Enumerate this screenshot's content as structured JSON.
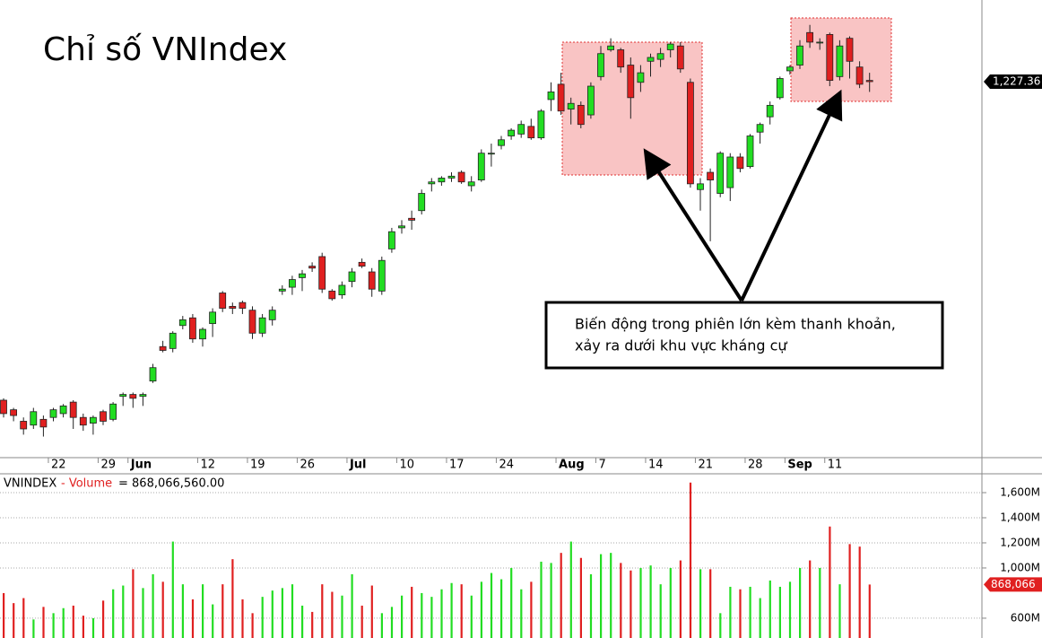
{
  "chart_data": [
    {
      "type": "candlestick",
      "title": "Chỉ số VNIndex",
      "up_color": "#22dd22",
      "down_color": "#e02020",
      "categories": [
        null,
        null,
        null,
        null,
        null,
        "22",
        null,
        null,
        null,
        null,
        "29",
        null,
        null,
        "Jun",
        null,
        null,
        null,
        null,
        null,
        null,
        "12",
        null,
        null,
        null,
        null,
        "19",
        null,
        null,
        null,
        null,
        "26",
        null,
        null,
        null,
        null,
        "Jul",
        null,
        null,
        null,
        null,
        "10",
        null,
        null,
        null,
        null,
        "17",
        null,
        null,
        null,
        null,
        "24",
        null,
        null,
        null,
        null,
        null,
        "Aug",
        null,
        null,
        null,
        "7",
        null,
        null,
        null,
        null,
        "14",
        null,
        null,
        null,
        null,
        "21",
        null,
        null,
        null,
        null,
        "28",
        null,
        null,
        null,
        "Sep",
        null,
        null,
        null,
        "11",
        null,
        null,
        null,
        null
      ],
      "open": [
        1061,
        1056,
        1050,
        1048,
        1051,
        1052,
        1054,
        1060,
        1052,
        1049,
        1055,
        1051,
        1063,
        1064,
        1063,
        1071,
        1089,
        1088,
        1100,
        1104,
        1093,
        1101,
        1117,
        1110,
        1112,
        1108,
        1096,
        1103,
        1118,
        1120,
        1125,
        1131,
        1136,
        1118,
        1116,
        1123,
        1133,
        1128,
        1118,
        1140,
        1151,
        1156,
        1160,
        1174,
        1175,
        1177,
        1180,
        1173,
        1176,
        1190,
        1194,
        1199,
        1200,
        1204,
        1198,
        1218,
        1226,
        1213,
        1215,
        1210,
        1230,
        1244,
        1244,
        1236,
        1227,
        1238,
        1239,
        1244,
        1246,
        1227,
        1171,
        1180,
        1169,
        1172,
        1188,
        1183,
        1201,
        1209,
        1219,
        1233,
        1236,
        1253,
        1248,
        1252,
        1230,
        1250,
        1235,
        1228
      ],
      "high": [
        1062,
        1057,
        1052,
        1057,
        1053,
        1057,
        1059,
        1061,
        1054,
        1053,
        1056,
        1060,
        1065,
        1065,
        1065,
        1080,
        1092,
        1097,
        1105,
        1106,
        1099,
        1109,
        1118,
        1112,
        1113,
        1110,
        1106,
        1110,
        1121,
        1126,
        1129,
        1133,
        1138,
        1119,
        1123,
        1130,
        1135,
        1130,
        1136,
        1151,
        1155,
        1160,
        1171,
        1177,
        1178,
        1180,
        1181,
        1178,
        1192,
        1195,
        1199,
        1203,
        1207,
        1208,
        1213,
        1227,
        1232,
        1219,
        1217,
        1227,
        1246,
        1250,
        1245,
        1240,
        1236,
        1242,
        1245,
        1248,
        1248,
        1229,
        1177,
        1182,
        1191,
        1190,
        1190,
        1200,
        1206,
        1217,
        1230,
        1236,
        1249,
        1257,
        1250,
        1253,
        1249,
        1251,
        1238,
        1232
      ],
      "low": [
        1052,
        1050,
        1043,
        1046,
        1042,
        1050,
        1052,
        1046,
        1045,
        1043,
        1048,
        1050,
        1058,
        1057,
        1058,
        1070,
        1086,
        1086,
        1098,
        1091,
        1089,
        1094,
        1107,
        1106,
        1106,
        1093,
        1094,
        1100,
        1116,
        1116,
        1118,
        1128,
        1117,
        1113,
        1114,
        1120,
        1130,
        1115,
        1116,
        1138,
        1148,
        1150,
        1158,
        1170,
        1173,
        1175,
        1174,
        1170,
        1175,
        1183,
        1192,
        1197,
        1198,
        1197,
        1197,
        1212,
        1210,
        1205,
        1203,
        1208,
        1228,
        1243,
        1232,
        1208,
        1222,
        1230,
        1235,
        1240,
        1232,
        1172,
        1160,
        1144,
        1167,
        1165,
        1180,
        1182,
        1195,
        1205,
        1218,
        1231,
        1234,
        1245,
        1244,
        1225,
        1228,
        1229,
        1224,
        1222
      ],
      "close": [
        1054,
        1053,
        1046,
        1055,
        1047,
        1056,
        1058,
        1052,
        1048,
        1052,
        1050,
        1059,
        1064,
        1062,
        1064,
        1078,
        1087,
        1096,
        1103,
        1093,
        1098,
        1107,
        1109,
        1109,
        1109,
        1096,
        1104,
        1108,
        1119,
        1124,
        1127,
        1130,
        1119,
        1114,
        1121,
        1128,
        1131,
        1119,
        1134,
        1149,
        1152,
        1155,
        1169,
        1175,
        1177,
        1178,
        1175,
        1175,
        1190,
        1190,
        1197,
        1202,
        1205,
        1198,
        1212,
        1222,
        1212,
        1216,
        1205,
        1225,
        1242,
        1246,
        1235,
        1219,
        1232,
        1240,
        1242,
        1247,
        1234,
        1174,
        1174,
        1176,
        1190,
        1188,
        1182,
        1199,
        1205,
        1215,
        1229,
        1235,
        1246,
        1248,
        1248,
        1228,
        1246,
        1238,
        1226,
        1227.36
      ],
      "last_price_label": "1,227.36",
      "ylim": [
        1031,
        1270
      ]
    },
    {
      "type": "volume",
      "series_code": "VNINDEX",
      "name": "- Volume",
      "readout": "= 868,066,560.00",
      "values": [
        800,
        720,
        760,
        590,
        690,
        640,
        680,
        700,
        620,
        600,
        740,
        830,
        860,
        990,
        840,
        950,
        890,
        1210,
        870,
        750,
        870,
        710,
        870,
        1070,
        750,
        640,
        770,
        820,
        840,
        870,
        700,
        650,
        870,
        810,
        780,
        950,
        700,
        860,
        640,
        690,
        780,
        850,
        800,
        770,
        830,
        880,
        870,
        780,
        890,
        960,
        910,
        1000,
        830,
        890,
        1050,
        1040,
        1120,
        1210,
        1080,
        950,
        1110,
        1120,
        1040,
        980,
        1000,
        1020,
        870,
        1000,
        1060,
        1680,
        990,
        990,
        640,
        850,
        830,
        850,
        760,
        900,
        850,
        890,
        1000,
        1060,
        1000,
        1330,
        870,
        1190,
        1170,
        868.06656
      ],
      "last_value_label": "868,066",
      "ylim": [
        478,
        1750
      ],
      "yticks": [
        {
          "value": 600,
          "label": "600M"
        },
        {
          "value": 1000,
          "label": "1,000M"
        },
        {
          "value": 1200,
          "label": "1,200M"
        },
        {
          "value": 1400,
          "label": "1,400M"
        },
        {
          "value": 1600,
          "label": "1,600M"
        }
      ],
      "grid": true
    }
  ],
  "annotation": {
    "lines": [
      "Biến động trong phiên lớn kèm thanh khoản,",
      "xảy ra dưới khu vực kháng cự"
    ]
  }
}
